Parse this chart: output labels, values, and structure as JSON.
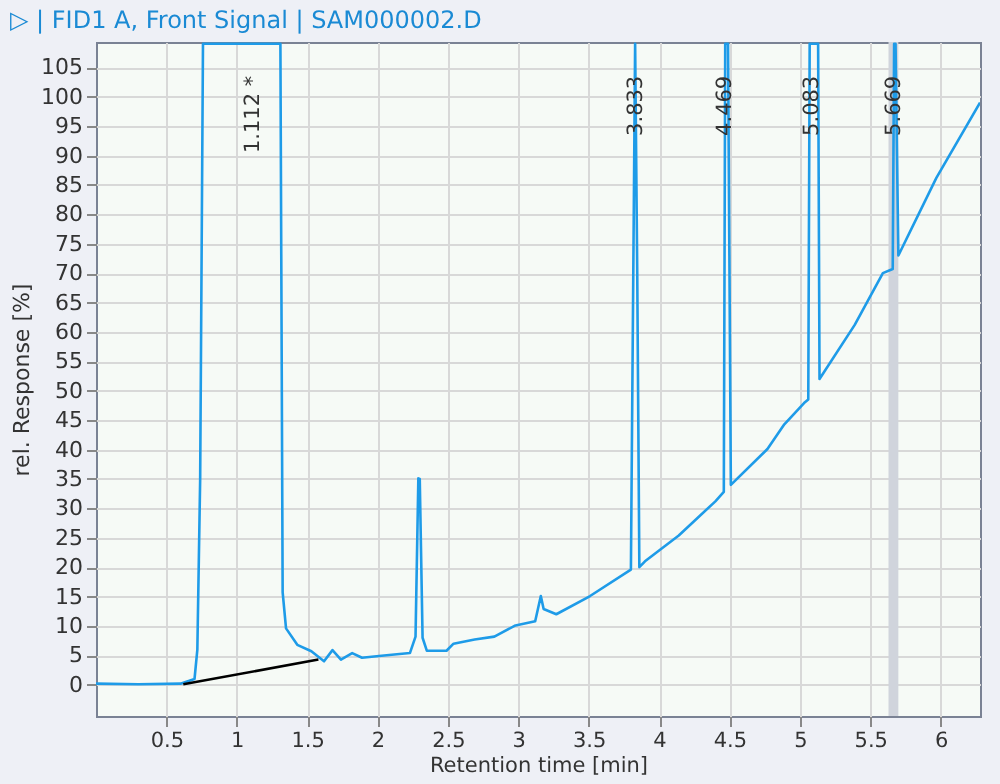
{
  "chart_data": {
    "type": "line",
    "title": "▷ | FID1 A, Front Signal | SAM000002.D",
    "xlabel": "Retention time [min]",
    "ylabel": "rel. Response [%]",
    "xlim": [
      0,
      6.28
    ],
    "ylim": [
      -5.3,
      109.3
    ],
    "xticks": [
      0.5,
      1,
      1.5,
      2,
      2.5,
      3,
      3.5,
      4,
      4.5,
      5,
      5.5,
      6
    ],
    "yticks": [
      0,
      5,
      10,
      15,
      20,
      25,
      30,
      35,
      40,
      45,
      50,
      55,
      60,
      65,
      70,
      75,
      80,
      85,
      90,
      95,
      100,
      105
    ],
    "grid": true,
    "marker": "none",
    "line_style": "solid",
    "series": [
      {
        "color": "#1e9be8",
        "x": [
          0,
          0.3,
          0.6,
          0.7,
          0.72,
          0.74,
          0.76,
          1.31,
          1.326,
          1.35,
          1.43,
          1.53,
          1.62,
          1.68,
          1.74,
          1.82,
          1.89,
          2.01,
          2.23,
          2.27,
          2.29,
          2.3,
          2.32,
          2.35,
          2.49,
          2.54,
          2.69,
          2.83,
          2.98,
          3.12,
          3.16,
          3.18,
          3.27,
          3.51,
          3.8,
          3.83,
          3.845,
          3.86,
          3.9,
          4.14,
          4.4,
          4.46,
          4.47,
          4.49,
          4.51,
          4.77,
          4.89,
          5.03,
          5.06,
          5.07,
          5.13,
          5.14,
          5.39,
          5.59,
          5.66,
          5.67,
          5.68,
          5.7,
          5.97,
          6.28
        ],
        "values": [
          0.2,
          0.1,
          0.2,
          1,
          6,
          35,
          109,
          109,
          15.7,
          9.6,
          6.8,
          5.7,
          4.0,
          5.9,
          4.3,
          5.4,
          4.6,
          4.9,
          5.4,
          8.2,
          35.1,
          35,
          8,
          5.8,
          5.8,
          7.0,
          7.7,
          8.2,
          10.1,
          10.8,
          15.1,
          12.9,
          12,
          15.1,
          19.6,
          109,
          70,
          20,
          21,
          25.4,
          31.2,
          32.8,
          109,
          109,
          34,
          40.1,
          44.3,
          47.9,
          48.5,
          109,
          109,
          52,
          61.2,
          70,
          70.7,
          109,
          109,
          73,
          86.2,
          99
        ]
      },
      {
        "color": "#000000",
        "x": [
          0.62,
          1.58
        ],
        "values": [
          0.1,
          4.3
        ]
      }
    ],
    "bands": [
      {
        "axis": "x",
        "from": 5.63,
        "to": 5.7,
        "color": "#d0d4dc"
      }
    ],
    "annotations": [
      {
        "text": "1.112 *",
        "x": 1.112,
        "y": 109
      },
      {
        "text": "3.833",
        "x": 3.833,
        "y": 109
      },
      {
        "text": "4.469",
        "x": 4.469,
        "y": 109
      },
      {
        "text": "5.083",
        "x": 5.083,
        "y": 109
      },
      {
        "text": "5.669",
        "x": 5.669,
        "y": 109
      }
    ]
  }
}
